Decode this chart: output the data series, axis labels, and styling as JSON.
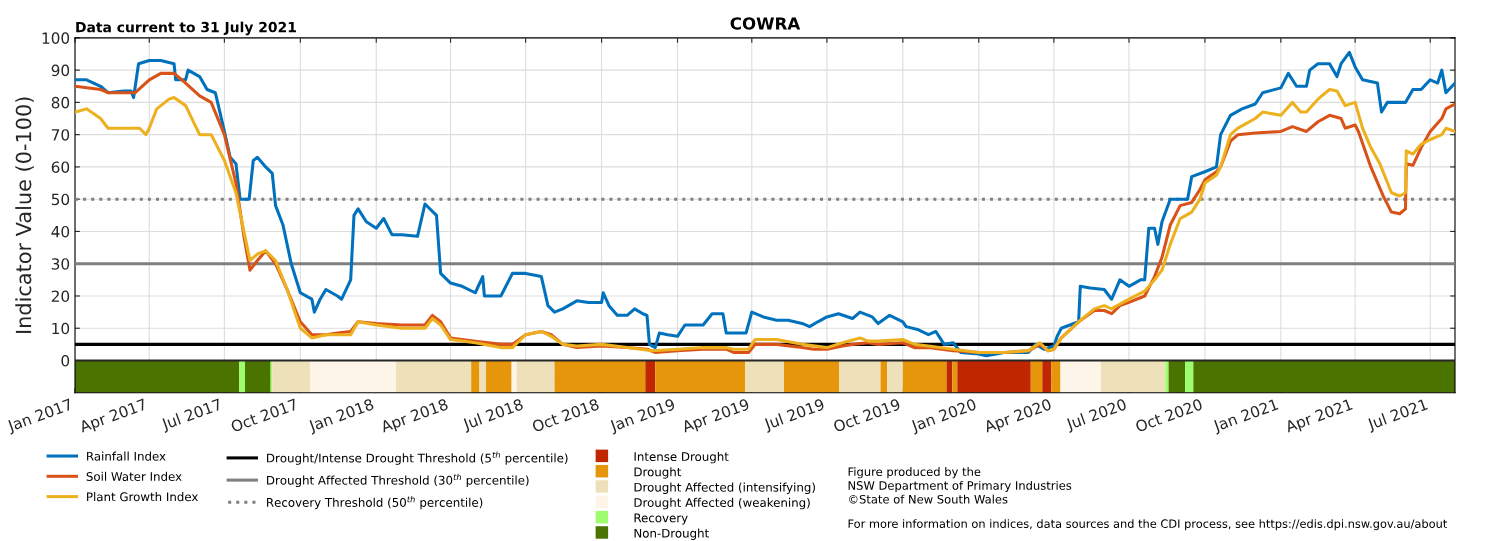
{
  "chart_data": {
    "type": "line",
    "title": "COWRA",
    "ylabel": "Indicator Value (0-100)",
    "annotations": [
      "Data current to 31 July 2021",
      "Figure produced by the\nNSW Department of Primary Industries\n©State of New South Wales",
      "For more information on indices, data sources and the CDI process, see https://edis.dpi.nsw.gov.au/about"
    ],
    "xlim": [
      "2017-01-01",
      "2021-07-31"
    ],
    "xticks": [
      {
        "value": "2017-01-01",
        "label": "Jan 2017"
      },
      {
        "value": "2017-04-01",
        "label": "Apr 2017"
      },
      {
        "value": "2017-07-01",
        "label": "Jul 2017"
      },
      {
        "value": "2017-10-01",
        "label": "Oct 2017"
      },
      {
        "value": "2018-01-01",
        "label": "Jan 2018"
      },
      {
        "value": "2018-04-01",
        "label": "Apr 2018"
      },
      {
        "value": "2018-07-01",
        "label": "Jul 2018"
      },
      {
        "value": "2018-10-01",
        "label": "Oct 2018"
      },
      {
        "value": "2019-01-01",
        "label": "Jan 2019"
      },
      {
        "value": "2019-04-01",
        "label": "Apr 2019"
      },
      {
        "value": "2019-07-01",
        "label": "Jul 2019"
      },
      {
        "value": "2019-10-01",
        "label": "Oct 2019"
      },
      {
        "value": "2020-01-01",
        "label": "Jan 2020"
      },
      {
        "value": "2020-04-01",
        "label": "Apr 2020"
      },
      {
        "value": "2020-07-01",
        "label": "Jul 2020"
      },
      {
        "value": "2020-10-01",
        "label": "Oct 2020"
      },
      {
        "value": "2021-01-01",
        "label": "Jan 2021"
      },
      {
        "value": "2021-04-01",
        "label": "Apr 2021"
      },
      {
        "value": "2021-07-01",
        "label": "Jul 2021"
      }
    ],
    "ylim": [
      -10,
      100
    ],
    "yticks": [
      {
        "value": -5,
        "label": null
      },
      0,
      10,
      20,
      30,
      40,
      50,
      60,
      70,
      80,
      90,
      100
    ],
    "grid": true,
    "legend": "bottom",
    "line_style": "solid",
    "marker": "none",
    "series": [
      {
        "name": "Rainfall Index",
        "color": "#0072bd",
        "x": [
          "2017-01-01",
          "2017-01-15",
          "2017-02-01",
          "2017-02-10",
          "2017-03-01",
          "2017-03-10",
          "2017-03-13",
          "2017-03-19",
          "2017-04-01",
          "2017-04-15",
          "2017-05-01",
          "2017-05-03",
          "2017-05-15",
          "2017-05-18",
          "2017-06-01",
          "2017-06-10",
          "2017-06-20",
          "2017-07-01",
          "2017-07-08",
          "2017-07-15",
          "2017-07-20",
          "2017-07-31",
          "2017-08-05",
          "2017-08-10",
          "2017-08-20",
          "2017-08-28",
          "2017-09-01",
          "2017-09-10",
          "2017-09-20",
          "2017-10-01",
          "2017-10-15",
          "2017-10-18",
          "2017-10-25",
          "2017-11-01",
          "2017-11-15",
          "2017-11-20",
          "2017-12-01",
          "2017-12-05",
          "2017-12-10",
          "2017-12-20",
          "2018-01-01",
          "2018-01-10",
          "2018-01-20",
          "2018-02-01",
          "2018-02-20",
          "2018-03-01",
          "2018-03-15",
          "2018-03-20",
          "2018-04-01",
          "2018-04-15",
          "2018-05-01",
          "2018-05-10",
          "2018-05-12",
          "2018-06-01",
          "2018-06-15",
          "2018-07-01",
          "2018-07-20",
          "2018-07-28",
          "2018-08-05",
          "2018-08-15",
          "2018-09-01",
          "2018-09-15",
          "2018-10-01",
          "2018-10-03",
          "2018-10-10",
          "2018-10-20",
          "2018-11-01",
          "2018-11-10",
          "2018-11-20",
          "2018-11-25",
          "2018-11-28",
          "2018-12-05",
          "2018-12-10",
          "2018-12-20",
          "2019-01-01",
          "2019-01-10",
          "2019-02-01",
          "2019-02-12",
          "2019-02-25",
          "2019-03-01",
          "2019-03-25",
          "2019-04-01",
          "2019-04-15",
          "2019-05-01",
          "2019-05-15",
          "2019-06-01",
          "2019-06-10",
          "2019-06-20",
          "2019-07-01",
          "2019-07-15",
          "2019-08-01",
          "2019-08-10",
          "2019-08-25",
          "2019-09-01",
          "2019-09-15",
          "2019-10-01",
          "2019-10-05",
          "2019-10-20",
          "2019-11-01",
          "2019-11-10",
          "2019-11-15",
          "2019-11-20",
          "2019-12-01",
          "2019-12-10",
          "2020-01-01",
          "2020-01-10",
          "2020-02-01",
          "2020-03-01",
          "2020-03-10",
          "2020-03-20",
          "2020-04-01",
          "2020-04-05",
          "2020-04-10",
          "2020-05-01",
          "2020-05-03",
          "2020-05-15",
          "2020-06-01",
          "2020-06-10",
          "2020-06-20",
          "2020-07-01",
          "2020-07-15",
          "2020-07-20",
          "2020-07-25",
          "2020-08-01",
          "2020-08-05",
          "2020-08-10",
          "2020-08-20",
          "2020-09-10",
          "2020-09-15",
          "2020-10-01",
          "2020-10-15",
          "2020-10-20",
          "2020-11-01",
          "2020-11-15",
          "2020-12-01",
          "2020-12-10",
          "2021-01-01",
          "2021-01-10",
          "2021-01-20",
          "2021-02-01",
          "2021-02-05",
          "2021-02-15",
          "2021-03-01",
          "2021-03-10",
          "2021-03-15",
          "2021-03-25",
          "2021-04-01",
          "2021-04-10",
          "2021-04-28",
          "2021-05-03",
          "2021-05-10",
          "2021-06-01",
          "2021-06-10",
          "2021-06-20",
          "2021-07-01",
          "2021-07-10",
          "2021-07-15",
          "2021-07-20",
          "2021-07-31"
        ],
        "values": [
          87,
          87,
          85,
          83,
          83.5,
          83.5,
          81.5,
          92,
          93,
          93,
          92,
          87,
          87,
          90,
          88,
          84,
          83,
          71,
          63,
          61,
          50,
          50,
          62,
          63,
          60,
          58,
          48,
          42,
          30,
          21,
          19,
          15,
          19,
          22,
          20,
          19,
          25,
          45,
          47,
          43,
          41,
          44,
          39,
          39,
          38.5,
          48.5,
          45,
          27,
          24,
          23,
          21,
          26,
          20,
          20,
          27,
          27,
          26,
          17,
          15,
          16,
          18.5,
          18,
          18,
          21,
          17,
          14,
          14,
          16,
          14.5,
          14,
          5,
          4,
          8.5,
          8,
          7.5,
          11,
          11,
          14.5,
          14.5,
          8.5,
          8.5,
          15,
          13.5,
          12.5,
          12.5,
          11.5,
          10.5,
          12,
          13.5,
          14.5,
          13,
          15,
          13.5,
          11.5,
          14,
          12,
          10.5,
          9.5,
          8,
          9,
          7,
          5,
          5.5,
          2.5,
          2,
          1.5,
          2.5,
          2.5,
          5,
          3.5,
          4.5,
          7.5,
          10,
          12,
          23,
          22.5,
          22,
          19,
          25,
          23,
          25,
          25,
          41,
          41,
          36,
          43,
          50,
          50,
          57,
          58.5,
          60,
          70,
          76,
          78,
          79.5,
          83,
          84.5,
          89,
          85,
          85,
          90,
          92,
          92,
          88,
          92,
          95.5,
          91,
          87,
          86,
          77,
          80,
          80,
          84,
          84,
          87,
          86,
          90,
          83,
          86
        ]
      },
      {
        "name": "Soil Water Index",
        "color": "#d95319",
        "x": [
          "2017-01-01",
          "2017-02-01",
          "2017-02-10",
          "2017-03-01",
          "2017-03-15",
          "2017-04-01",
          "2017-04-15",
          "2017-05-01",
          "2017-05-15",
          "2017-06-01",
          "2017-06-15",
          "2017-07-01",
          "2017-07-15",
          "2017-07-25",
          "2017-08-01",
          "2017-08-10",
          "2017-08-20",
          "2017-09-01",
          "2017-09-15",
          "2017-10-01",
          "2017-10-15",
          "2017-11-01",
          "2017-11-15",
          "2017-12-01",
          "2017-12-10",
          "2018-01-01",
          "2018-02-01",
          "2018-03-01",
          "2018-03-10",
          "2018-03-20",
          "2018-04-01",
          "2018-05-01",
          "2018-06-01",
          "2018-06-15",
          "2018-07-01",
          "2018-07-20",
          "2018-08-01",
          "2018-08-15",
          "2018-09-01",
          "2018-10-01",
          "2018-11-01",
          "2018-11-25",
          "2018-12-05",
          "2019-01-01",
          "2019-02-01",
          "2019-03-01",
          "2019-03-10",
          "2019-03-28",
          "2019-04-05",
          "2019-05-01",
          "2019-06-01",
          "2019-06-15",
          "2019-07-01",
          "2019-07-20",
          "2019-08-01",
          "2019-08-20",
          "2019-09-01",
          "2019-10-01",
          "2019-10-15",
          "2019-11-01",
          "2019-12-01",
          "2020-01-01",
          "2020-02-01",
          "2020-03-01",
          "2020-03-15",
          "2020-03-25",
          "2020-04-01",
          "2020-04-10",
          "2020-05-01",
          "2020-05-20",
          "2020-06-01",
          "2020-06-10",
          "2020-06-20",
          "2020-07-01",
          "2020-07-20",
          "2020-08-01",
          "2020-08-10",
          "2020-08-20",
          "2020-09-01",
          "2020-09-15",
          "2020-09-25",
          "2020-10-01",
          "2020-10-15",
          "2020-10-20",
          "2020-11-01",
          "2020-11-10",
          "2020-12-01",
          "2021-01-01",
          "2021-01-15",
          "2021-02-01",
          "2021-02-15",
          "2021-03-01",
          "2021-03-15",
          "2021-03-20",
          "2021-04-01",
          "2021-04-05",
          "2021-04-20",
          "2021-05-05",
          "2021-05-15",
          "2021-05-25",
          "2021-06-01",
          "2021-06-02",
          "2021-06-10",
          "2021-06-20",
          "2021-07-01",
          "2021-07-15",
          "2021-07-20",
          "2021-07-31"
        ],
        "values": [
          85,
          84,
          83,
          83,
          83,
          87,
          89,
          89,
          86,
          82,
          80,
          70,
          55,
          38,
          28,
          31,
          34,
          30,
          22,
          12,
          8,
          8,
          8.5,
          9,
          12,
          11.5,
          11,
          11,
          14,
          12,
          7,
          6,
          5,
          5,
          8,
          9,
          8,
          5,
          4,
          4.5,
          4,
          3.5,
          2.5,
          3,
          3.5,
          3.5,
          2.5,
          2.5,
          5,
          5,
          4,
          3.5,
          3.5,
          4.5,
          5,
          5.5,
          5,
          5.5,
          4,
          4,
          3,
          2.5,
          2.5,
          3,
          5,
          3,
          3.5,
          7,
          12,
          15.5,
          15.5,
          14.5,
          17,
          18,
          20,
          26,
          32,
          42,
          48,
          49,
          53,
          56,
          58.5,
          60,
          68,
          70,
          70.5,
          71,
          72.5,
          71,
          74,
          76,
          75,
          72,
          73,
          71,
          60,
          51,
          46,
          45.5,
          47,
          61,
          60.5,
          66,
          71,
          75,
          78,
          79.5
        ]
      },
      {
        "name": "Plant Growth Index",
        "color": "#edb120",
        "x": [
          "2017-01-01",
          "2017-01-15",
          "2017-02-01",
          "2017-02-10",
          "2017-03-01",
          "2017-03-20",
          "2017-03-28",
          "2017-04-01",
          "2017-04-10",
          "2017-04-25",
          "2017-05-01",
          "2017-05-15",
          "2017-06-01",
          "2017-06-15",
          "2017-07-01",
          "2017-07-15",
          "2017-08-01",
          "2017-08-10",
          "2017-08-20",
          "2017-09-01",
          "2017-09-15",
          "2017-10-01",
          "2017-10-15",
          "2017-11-01",
          "2017-12-01",
          "2017-12-10",
          "2018-01-01",
          "2018-02-01",
          "2018-03-01",
          "2018-03-10",
          "2018-03-20",
          "2018-04-01",
          "2018-05-01",
          "2018-06-01",
          "2018-06-15",
          "2018-07-01",
          "2018-07-20",
          "2018-08-01",
          "2018-08-15",
          "2018-09-01",
          "2018-10-01",
          "2018-11-01",
          "2018-12-01",
          "2019-01-01",
          "2019-02-01",
          "2019-03-01",
          "2019-03-10",
          "2019-03-28",
          "2019-04-05",
          "2019-05-01",
          "2019-06-01",
          "2019-07-01",
          "2019-07-20",
          "2019-08-10",
          "2019-08-20",
          "2019-09-01",
          "2019-10-01",
          "2019-10-15",
          "2019-11-01",
          "2019-12-01",
          "2020-01-01",
          "2020-02-01",
          "2020-03-01",
          "2020-03-15",
          "2020-03-25",
          "2020-04-01",
          "2020-04-10",
          "2020-05-01",
          "2020-05-20",
          "2020-06-01",
          "2020-06-10",
          "2020-06-20",
          "2020-07-01",
          "2020-07-20",
          "2020-08-01",
          "2020-08-10",
          "2020-08-20",
          "2020-09-01",
          "2020-09-15",
          "2020-09-25",
          "2020-10-01",
          "2020-10-15",
          "2020-10-20",
          "2020-11-01",
          "2020-11-10",
          "2020-12-01",
          "2020-12-10",
          "2021-01-01",
          "2021-01-15",
          "2021-01-25",
          "2021-02-01",
          "2021-02-15",
          "2021-03-01",
          "2021-03-10",
          "2021-03-20",
          "2021-04-01",
          "2021-04-10",
          "2021-04-20",
          "2021-05-01",
          "2021-05-15",
          "2021-05-25",
          "2021-06-01",
          "2021-06-02",
          "2021-06-10",
          "2021-06-20",
          "2021-07-01",
          "2021-07-15",
          "2021-07-20",
          "2021-07-31"
        ],
        "values": [
          77,
          78,
          75,
          72,
          72,
          72,
          70,
          72,
          78,
          81,
          81.5,
          79,
          70,
          70,
          62,
          52,
          31,
          33,
          34,
          31,
          22,
          10,
          7,
          8,
          8,
          12,
          11,
          10,
          10,
          13,
          11,
          6.5,
          5.5,
          4,
          4,
          8,
          9,
          7.5,
          5,
          4.5,
          5,
          4,
          3,
          3.5,
          4,
          4,
          3.5,
          3.5,
          6.5,
          6.5,
          5,
          4,
          5.5,
          7,
          6,
          6,
          6.5,
          5,
          4.5,
          3.5,
          2.5,
          2.5,
          3,
          5.5,
          3,
          3.5,
          7,
          12,
          16,
          17,
          16,
          17.5,
          19,
          21.5,
          25,
          28,
          36,
          44,
          46,
          50,
          55,
          57.5,
          60,
          70,
          72,
          75,
          77,
          76,
          80,
          77,
          77,
          81,
          84,
          83.5,
          79,
          80,
          72,
          66,
          61,
          52,
          51,
          52,
          65,
          64,
          67,
          68.5,
          70,
          72,
          71
        ]
      }
    ],
    "ref_lines": [
      {
        "axis": "y",
        "value": 5,
        "label": "Drought/Intense Drought Threshold (5$^{th}$ percentile)",
        "color": "#000000",
        "line_style": "solid"
      },
      {
        "axis": "y",
        "value": 30,
        "label": "Drought Affected Threshold (30$^{th}$ percentile)",
        "color": "#808080",
        "line_style": "solid"
      },
      {
        "axis": "y",
        "value": 50,
        "label": "Recovery Threshold (50$^{th}$ percentile)",
        "color": "#808080",
        "line_style": "dotted"
      }
    ],
    "bands": [
      {
        "axis": "x",
        "from": "2017-01-01",
        "to": "2017-07-19",
        "color": "#4a7300"
      },
      {
        "axis": "x",
        "from": "2017-07-19",
        "to": "2017-07-26",
        "color": "#9efc6f"
      },
      {
        "axis": "x",
        "from": "2017-07-26",
        "to": "2017-08-26",
        "color": "#4a7300"
      },
      {
        "axis": "x",
        "from": "2017-08-26",
        "to": "2017-08-28",
        "color": "#9efc6f"
      },
      {
        "axis": "x",
        "from": "2017-08-28",
        "to": "2017-10-13",
        "color": "#eee0b8"
      },
      {
        "axis": "x",
        "from": "2017-10-13",
        "to": "2018-01-25",
        "color": "#fdf5e8"
      },
      {
        "axis": "x",
        "from": "2018-01-25",
        "to": "2018-04-26",
        "color": "#eee0b8"
      },
      {
        "axis": "x",
        "from": "2018-04-26",
        "to": "2018-05-06",
        "color": "#e6960a"
      },
      {
        "axis": "x",
        "from": "2018-05-06",
        "to": "2018-05-14",
        "color": "#eee0b8"
      },
      {
        "axis": "x",
        "from": "2018-05-14",
        "to": "2018-06-14",
        "color": "#e6960a"
      },
      {
        "axis": "x",
        "from": "2018-06-14",
        "to": "2018-06-20",
        "color": "#fdf5e8"
      },
      {
        "axis": "x",
        "from": "2018-06-20",
        "to": "2018-08-05",
        "color": "#eee0b8"
      },
      {
        "axis": "x",
        "from": "2018-08-05",
        "to": "2018-11-23",
        "color": "#e6960a"
      },
      {
        "axis": "x",
        "from": "2018-11-23",
        "to": "2018-12-05",
        "label": "Intense Drought",
        "color": "#c02600"
      },
      {
        "axis": "x",
        "from": "2018-12-05",
        "to": "2019-03-24",
        "label": "Drought",
        "color": "#e6960a"
      },
      {
        "axis": "x",
        "from": "2019-03-24",
        "to": "2019-05-10",
        "label": "Drought Affected (intensifying)",
        "color": "#eee0b8"
      },
      {
        "axis": "x",
        "from": "2019-05-10",
        "to": "2019-07-16",
        "color": "#e6960a"
      },
      {
        "axis": "x",
        "from": "2019-07-16",
        "to": "2019-09-04",
        "color": "#eee0b8"
      },
      {
        "axis": "x",
        "from": "2019-09-04",
        "to": "2019-09-12",
        "color": "#e6960a"
      },
      {
        "axis": "x",
        "from": "2019-09-12",
        "to": "2019-10-01",
        "color": "#eee0b8"
      },
      {
        "axis": "x",
        "from": "2019-10-01",
        "to": "2019-11-23",
        "color": "#e6960a"
      },
      {
        "axis": "x",
        "from": "2019-11-23",
        "to": "2019-11-30",
        "color": "#c02600"
      },
      {
        "axis": "x",
        "from": "2019-11-30",
        "to": "2019-12-06",
        "color": "#e6960a"
      },
      {
        "axis": "x",
        "from": "2019-12-06",
        "to": "2020-03-04",
        "color": "#c02600"
      },
      {
        "axis": "x",
        "from": "2020-03-04",
        "to": "2020-03-18",
        "color": "#e6960a"
      },
      {
        "axis": "x",
        "from": "2020-03-18",
        "to": "2020-03-29",
        "color": "#c02600"
      },
      {
        "axis": "x",
        "from": "2020-03-29",
        "to": "2020-04-09",
        "color": "#e6960a"
      },
      {
        "axis": "x",
        "from": "2020-04-09",
        "to": "2020-05-28",
        "label": "Drought Affected (weakening)",
        "color": "#fdf5e8"
      },
      {
        "axis": "x",
        "from": "2020-05-28",
        "to": "2020-08-14",
        "color": "#eee0b8"
      },
      {
        "axis": "x",
        "from": "2020-08-14",
        "to": "2020-08-18",
        "label": "Recovery",
        "color": "#9efc6f"
      },
      {
        "axis": "x",
        "from": "2020-08-18",
        "to": "2020-09-07",
        "label": "Non-Drought",
        "color": "#4a7300"
      },
      {
        "axis": "x",
        "from": "2020-09-07",
        "to": "2020-09-17",
        "color": "#9efc6f"
      },
      {
        "axis": "x",
        "from": "2020-09-17",
        "to": "2021-07-31",
        "color": "#4a7300"
      }
    ]
  }
}
